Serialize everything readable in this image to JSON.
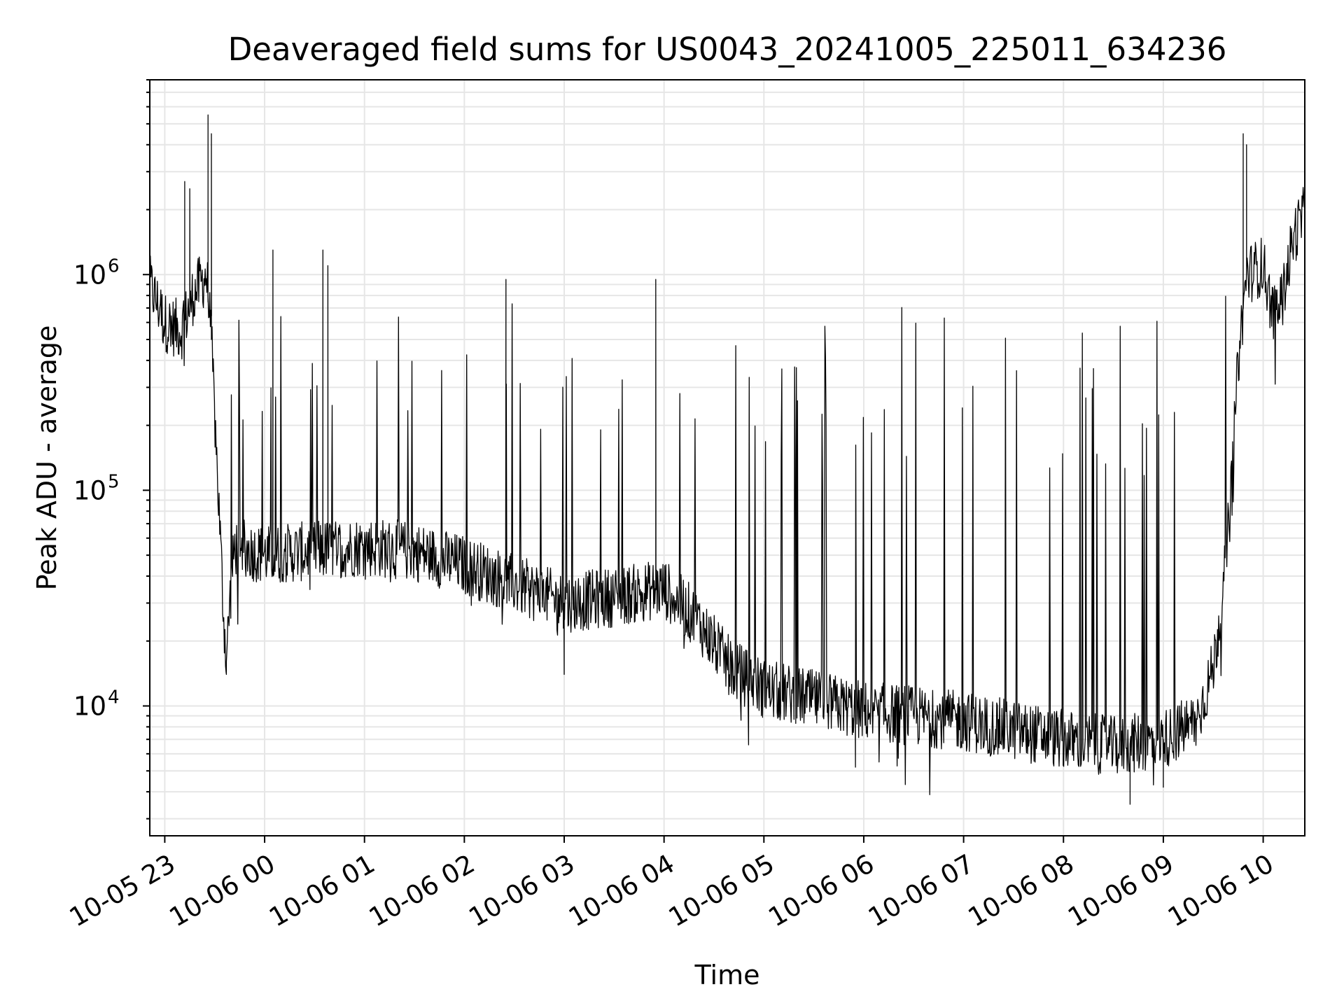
{
  "chart_data": {
    "type": "line",
    "title": "Deaveraged field sums for US0043_20241005_225011_634236",
    "xlabel": "Time",
    "ylabel": "Peak ADU - average",
    "yscale": "log",
    "ylim": [
      2500,
      8000000
    ],
    "xlim": [
      "2024-10-05 22:51",
      "2024-10-06 10:25"
    ],
    "grid": true,
    "x_ticks": [
      {
        "label": "10-05 23",
        "time": "2024-10-05 23:00"
      },
      {
        "label": "10-06 00",
        "time": "2024-10-06 00:00"
      },
      {
        "label": "10-06 01",
        "time": "2024-10-06 01:00"
      },
      {
        "label": "10-06 02",
        "time": "2024-10-06 02:00"
      },
      {
        "label": "10-06 03",
        "time": "2024-10-06 03:00"
      },
      {
        "label": "10-06 04",
        "time": "2024-10-06 04:00"
      },
      {
        "label": "10-06 05",
        "time": "2024-10-06 05:00"
      },
      {
        "label": "10-06 06",
        "time": "2024-10-06 06:00"
      },
      {
        "label": "10-06 07",
        "time": "2024-10-06 07:00"
      },
      {
        "label": "10-06 08",
        "time": "2024-10-06 08:00"
      },
      {
        "label": "10-06 09",
        "time": "2024-10-06 09:00"
      },
      {
        "label": "10-06 10",
        "time": "2024-10-06 10:00"
      }
    ],
    "y_ticks": [
      {
        "base": "10",
        "exp": "4",
        "value": 10000
      },
      {
        "base": "10",
        "exp": "5",
        "value": 100000
      },
      {
        "base": "10",
        "exp": "6",
        "value": 1000000
      }
    ],
    "series": [
      {
        "color": "#000000",
        "baseline": [
          {
            "x": "2024-10-05 22:51",
            "y": 900000
          },
          {
            "x": "2024-10-05 23:00",
            "y": 600000
          },
          {
            "x": "2024-10-05 23:10",
            "y": 550000
          },
          {
            "x": "2024-10-05 23:17",
            "y": 800000
          },
          {
            "x": "2024-10-05 23:25",
            "y": 1000000
          },
          {
            "x": "2024-10-05 23:28",
            "y": 500000
          },
          {
            "x": "2024-10-05 23:31",
            "y": 150000
          },
          {
            "x": "2024-10-05 23:33",
            "y": 70000
          },
          {
            "x": "2024-10-05 23:35",
            "y": 30000
          },
          {
            "x": "2024-10-05 23:37",
            "y": 16000
          },
          {
            "x": "2024-10-05 23:39",
            "y": 30000
          },
          {
            "x": "2024-10-05 23:42",
            "y": 55000
          },
          {
            "x": "2024-10-06 00:00",
            "y": 50000
          },
          {
            "x": "2024-10-06 01:00",
            "y": 55000
          },
          {
            "x": "2024-10-06 01:30",
            "y": 52000
          },
          {
            "x": "2024-10-06 02:00",
            "y": 45000
          },
          {
            "x": "2024-10-06 03:00",
            "y": 30000
          },
          {
            "x": "2024-10-06 03:30",
            "y": 32000
          },
          {
            "x": "2024-10-06 04:00",
            "y": 35000
          },
          {
            "x": "2024-10-06 04:20",
            "y": 25000
          },
          {
            "x": "2024-10-06 04:40",
            "y": 15000
          },
          {
            "x": "2024-10-06 05:00",
            "y": 12000
          },
          {
            "x": "2024-10-06 06:00",
            "y": 9500
          },
          {
            "x": "2024-10-06 07:00",
            "y": 8500
          },
          {
            "x": "2024-10-06 08:00",
            "y": 7000
          },
          {
            "x": "2024-10-06 08:30",
            "y": 6500
          },
          {
            "x": "2024-10-06 09:00",
            "y": 7000
          },
          {
            "x": "2024-10-06 09:20",
            "y": 8500
          },
          {
            "x": "2024-10-06 09:30",
            "y": 15000
          },
          {
            "x": "2024-10-06 09:35",
            "y": 30000
          },
          {
            "x": "2024-10-06 09:40",
            "y": 80000
          },
          {
            "x": "2024-10-06 09:45",
            "y": 400000
          },
          {
            "x": "2024-10-06 09:50",
            "y": 1000000
          },
          {
            "x": "2024-10-06 10:00",
            "y": 1100000
          },
          {
            "x": "2024-10-06 10:06",
            "y": 650000
          },
          {
            "x": "2024-10-06 10:12",
            "y": 800000
          },
          {
            "x": "2024-10-06 10:18",
            "y": 1500000
          },
          {
            "x": "2024-10-06 10:25",
            "y": 1900000
          }
        ],
        "peaks": [
          {
            "x": "2024-10-05 23:26",
            "y": 5500000
          },
          {
            "x": "2024-10-05 23:28",
            "y": 4500000
          },
          {
            "x": "2024-10-05 23:12",
            "y": 2700000
          },
          {
            "x": "2024-10-05 23:15",
            "y": 2500000
          },
          {
            "x": "2024-10-06 00:05",
            "y": 1300000
          },
          {
            "x": "2024-10-06 00:35",
            "y": 1300000
          },
          {
            "x": "2024-10-06 00:38",
            "y": 1100000
          },
          {
            "x": "2024-10-06 02:25",
            "y": 950000
          },
          {
            "x": "2024-10-06 03:55",
            "y": 950000
          },
          {
            "x": "2024-10-06 09:48",
            "y": 4500000
          },
          {
            "x": "2024-10-06 09:50",
            "y": 4000000
          }
        ],
        "dips": [
          {
            "x": "2024-10-05 23:37",
            "y": 14000
          },
          {
            "x": "2024-10-06 03:00",
            "y": 14000
          },
          {
            "x": "2024-10-06 05:55",
            "y": 5200
          },
          {
            "x": "2024-10-06 08:40",
            "y": 3500
          },
          {
            "x": "2024-10-06 09:00",
            "y": 4200
          }
        ]
      }
    ]
  }
}
